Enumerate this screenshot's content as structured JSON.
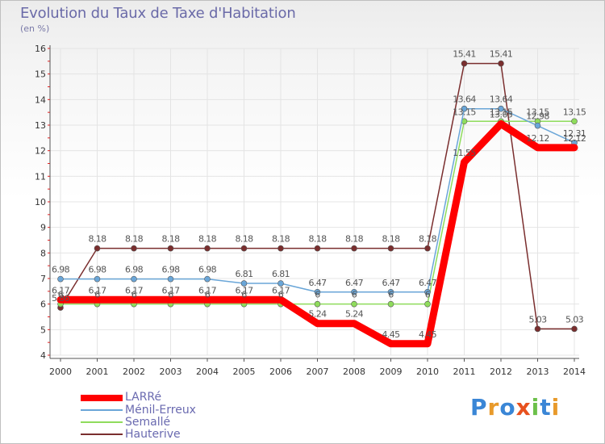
{
  "title": "Evolution du Taux de Taxe d'Habitation",
  "subtitle": "(en %)",
  "logo": {
    "text": "Proxiti",
    "letters": [
      "P",
      "r",
      "o",
      "x",
      "i",
      "t",
      "i"
    ],
    "colors": [
      "#3a86d6",
      "#e89a2b",
      "#3a86d6",
      "#e8511e",
      "#6cc04a",
      "#3a86d6",
      "#e89a2b"
    ]
  },
  "colors": {
    "LARRe": "#ff0000",
    "Menil-Erreux": "#6aa6d8",
    "Semalle": "#8fdc5c",
    "Hauterive": "#7a2e2e",
    "grid": "#e4e4e4",
    "axis": "#555555",
    "tick_label": "#333333",
    "data_label": "#555555"
  },
  "chart_data": {
    "type": "line",
    "x": [
      "2000",
      "2001",
      "2002",
      "2003",
      "2004",
      "2005",
      "2006",
      "2007",
      "2008",
      "2009",
      "2010",
      "2011",
      "2012",
      "2013",
      "2014"
    ],
    "ylim": [
      4,
      16
    ],
    "yticks": [
      "4",
      "5",
      "6",
      "7",
      "8",
      "9",
      "10",
      "11",
      "12",
      "13",
      "14",
      "15",
      "16"
    ],
    "grid": true,
    "legend_position": "bottom-left",
    "series": [
      {
        "name": "LARRé",
        "values": [
          6.17,
          6.17,
          6.17,
          6.17,
          6.17,
          6.17,
          6.17,
          5.24,
          5.24,
          4.45,
          4.45,
          11.55,
          13.05,
          12.12,
          12.12
        ],
        "labels": [
          "6.17",
          "6.17",
          "6.17",
          "6.17",
          "6.17",
          "6.17",
          "6.17",
          "5.24",
          "5.24",
          "4.45",
          "4.45",
          "11.55",
          "13.05",
          "12.12",
          "12.12"
        ]
      },
      {
        "name": "Ménil-Erreux",
        "values": [
          6.98,
          6.98,
          6.98,
          6.98,
          6.98,
          6.81,
          6.81,
          6.47,
          6.47,
          6.47,
          6.47,
          13.64,
          13.64,
          12.98,
          12.31
        ],
        "labels": [
          "6.98",
          "6.98",
          "6.98",
          "6.98",
          "6.98",
          "6.81",
          "6.81",
          "6.47",
          "6.47",
          "6.47",
          "6.47",
          "13.64",
          "13.64",
          "12.98",
          "12.31"
        ]
      },
      {
        "name": "Semallé",
        "values": [
          6,
          6,
          6,
          6,
          6,
          6,
          6,
          6,
          6,
          6,
          6,
          13.15,
          13.15,
          13.15,
          13.15
        ],
        "labels": [
          "6",
          "6",
          "6",
          "6",
          "6",
          "6",
          "6",
          "6",
          "6",
          "6",
          "6",
          "13.15",
          "13.15",
          "13.15",
          "13.15"
        ]
      },
      {
        "name": "Hauterive",
        "values": [
          5.86,
          8.18,
          8.18,
          8.18,
          8.18,
          8.18,
          8.18,
          8.18,
          8.18,
          8.18,
          8.18,
          15.41,
          15.41,
          5.03,
          5.03
        ],
        "labels": [
          "5.86",
          "8.18",
          "8.18",
          "8.18",
          "8.18",
          "8.18",
          "8.18",
          "8.18",
          "8.18",
          "8.18",
          "8.18",
          "15.41",
          "15.41",
          "5.03",
          "5.03"
        ]
      }
    ]
  }
}
